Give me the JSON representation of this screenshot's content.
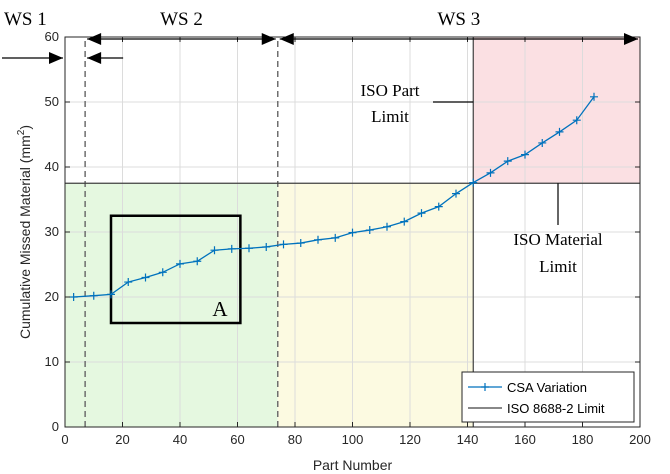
{
  "chart_data": {
    "type": "line",
    "xlabel": "Part Number",
    "ylabel": "Cumulative Missed Material (mm²)",
    "ylabel_parts": {
      "main": "Cumulative Missed Material (mm",
      "sup": "2",
      "tail": ")"
    },
    "xlim": [
      0,
      200
    ],
    "ylim": [
      0,
      60
    ],
    "xticks": [
      0,
      20,
      40,
      60,
      80,
      100,
      120,
      140,
      160,
      180,
      200
    ],
    "yticks": [
      0,
      10,
      20,
      30,
      40,
      50,
      60
    ],
    "grid": true,
    "legend_position": "bottom-right",
    "series": [
      {
        "name": "CSA Variation",
        "color": "#0072bd",
        "marker": "plus",
        "x": [
          3,
          10,
          16,
          22,
          28,
          34,
          40,
          46,
          52,
          58,
          64,
          70,
          76,
          82,
          88,
          94,
          100,
          106,
          112,
          118,
          124,
          130,
          136,
          142,
          148,
          154,
          160,
          166,
          172,
          178,
          184
        ],
        "y": [
          20.0,
          20.2,
          20.4,
          22.3,
          23.0,
          23.8,
          25.1,
          25.5,
          27.2,
          27.4,
          27.5,
          27.7,
          28.1,
          28.3,
          28.8,
          29.1,
          29.9,
          30.3,
          30.8,
          31.6,
          32.9,
          33.9,
          35.9,
          37.6,
          39.1,
          40.9,
          41.9,
          43.7,
          45.4,
          47.2,
          50.8
        ]
      },
      {
        "name": "ISO 8688-2 Limit",
        "color": "#404040",
        "marker": "none",
        "x": [
          0,
          200
        ],
        "y": [
          37.5,
          37.5
        ]
      }
    ],
    "regions": [
      {
        "label": "green",
        "color": "#e5f8e0",
        "x": [
          0,
          74
        ],
        "y": [
          0,
          37.5
        ]
      },
      {
        "label": "yellow",
        "color": "#fcfae1",
        "x": [
          74,
          142
        ],
        "y": [
          0,
          37.5
        ]
      },
      {
        "label": "red",
        "color": "#fbe0e3",
        "x": [
          142,
          200
        ],
        "y": [
          37.5,
          60
        ]
      }
    ],
    "dividers": [
      {
        "x": 7,
        "y": [
          0,
          60
        ]
      },
      {
        "x": 74,
        "y": [
          0,
          60
        ]
      },
      {
        "x": 142,
        "y": [
          0,
          60
        ]
      }
    ],
    "box_a": {
      "label": "A",
      "x": [
        16,
        61
      ],
      "y": [
        16,
        32.5
      ]
    },
    "workstations": [
      {
        "label": "WS 1",
        "x": [
          0,
          7
        ]
      },
      {
        "label": "WS 2",
        "x": [
          7,
          74
        ]
      },
      {
        "label": "WS 3",
        "x": [
          74,
          200
        ]
      }
    ],
    "annotations": [
      {
        "id": "iso-part",
        "lines": [
          "ISO Part",
          "Limit"
        ]
      },
      {
        "id": "iso-material",
        "lines": [
          "ISO Material",
          "Limit"
        ]
      }
    ]
  }
}
